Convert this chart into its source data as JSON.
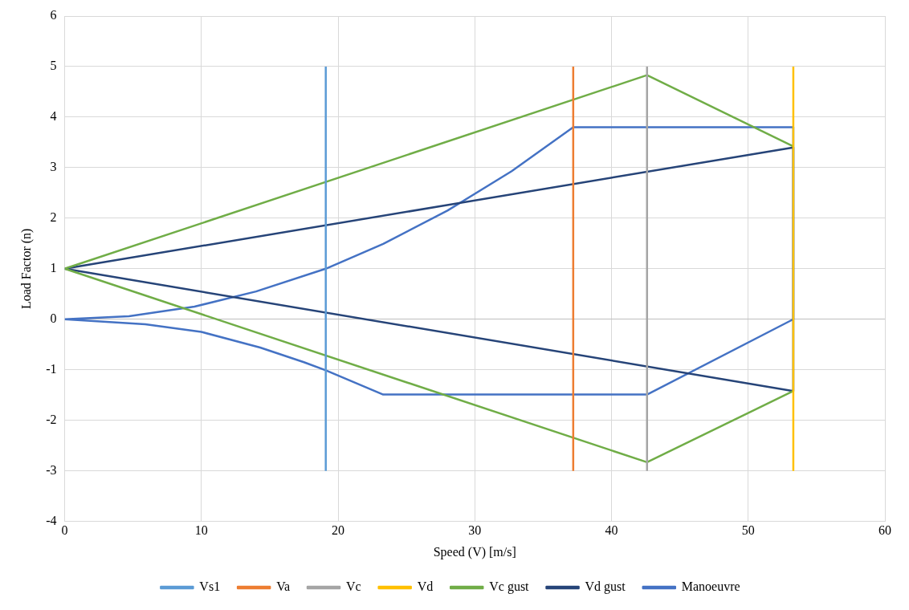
{
  "chart_data": {
    "type": "line",
    "xlabel": "Speed (V) [m/s]",
    "ylabel": "Load Factor (n)",
    "xlim": [
      0,
      60
    ],
    "xticks": [
      0,
      10,
      20,
      30,
      40,
      50,
      60
    ],
    "ylim": [
      -4,
      6
    ],
    "yticks": [
      -4,
      -3,
      -2,
      -1,
      0,
      1,
      2,
      3,
      4,
      5,
      6
    ],
    "grid": true,
    "legend": "bottom",
    "marker": "none",
    "line_style": "solid",
    "series": [
      {
        "name": "Vs1",
        "color": "#5b9bd5",
        "x": [
          19.1,
          19.1
        ],
        "values": [
          -3,
          5
        ]
      },
      {
        "name": "Va",
        "color": "#ed7d31",
        "x": [
          37.2,
          37.2
        ],
        "values": [
          -3,
          5
        ]
      },
      {
        "name": "Vc",
        "color": "#a5a5a5",
        "x": [
          42.6,
          42.6
        ],
        "values": [
          -3,
          5
        ]
      },
      {
        "name": "Vd",
        "color": "#ffc000",
        "x": [
          53.3,
          53.3
        ],
        "values": [
          -3,
          5
        ]
      },
      {
        "name": "Vc gust",
        "color": "#70ad47",
        "x": [
          0,
          42.6,
          53.3,
          null,
          0,
          42.6,
          53.3
        ],
        "values": [
          1,
          4.83,
          3.42,
          null,
          1,
          -2.83,
          -1.42
        ]
      },
      {
        "name": "Vd gust",
        "color": "#264478",
        "x": [
          0,
          53.3,
          53.3,
          null,
          0,
          53.3
        ],
        "values": [
          1,
          3.4,
          -1.42,
          null,
          1,
          -1.42
        ]
      },
      {
        "name": "Manoeuvre",
        "color": "#4472c4",
        "x": [
          0,
          4.7,
          9.5,
          14,
          19.1,
          23.3,
          28,
          32.7,
          37.2,
          53.3,
          53.3,
          null,
          0,
          5.9,
          10,
          14.3,
          17.5,
          19.1,
          23.3,
          42.6,
          53.3
        ],
        "values": [
          0,
          0.06,
          0.25,
          0.55,
          1,
          1.49,
          2.15,
          2.93,
          3.8,
          3.8,
          0,
          null,
          0,
          -0.1,
          -0.25,
          -0.56,
          -0.85,
          -1.01,
          -1.49,
          -1.49,
          0
        ]
      }
    ]
  }
}
